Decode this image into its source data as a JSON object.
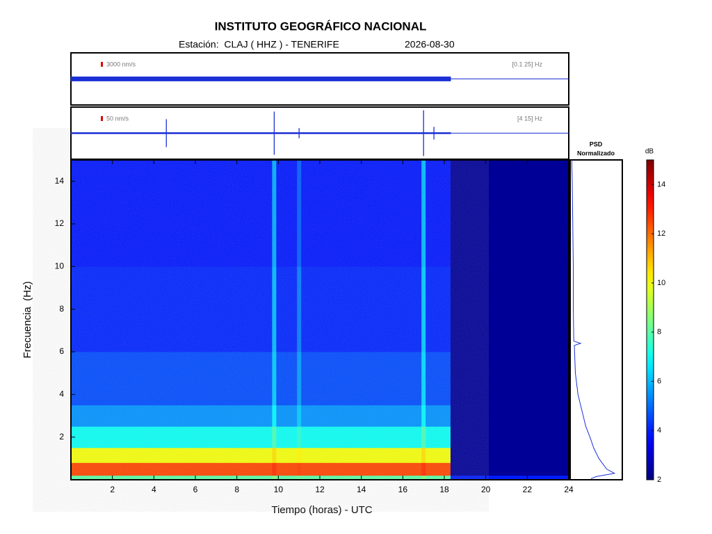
{
  "chart_data": {
    "type": "spectrogram",
    "title": "INSTITUTO GEOGRÁFICO NACIONAL",
    "subtitle": "Estación:  CLAJ ( HHZ ) - TENERIFE",
    "date": "2026-08-30",
    "x_label": "Tiempo (horas) - UTC",
    "y_label": "Frecuencia  (Hz)",
    "xlim": [
      0,
      24
    ],
    "xticks": [
      2,
      4,
      6,
      8,
      10,
      12,
      14,
      16,
      18,
      20,
      22,
      24
    ],
    "ylim": [
      0,
      15
    ],
    "yticks": [
      2,
      4,
      6,
      8,
      10,
      12,
      14
    ],
    "traces": [
      {
        "scale_label": "3000 nm/s",
        "band_label": "[0.1 25] Hz",
        "ylim": [
          -1,
          1
        ],
        "x": [
          0,
          18.3
        ],
        "values": [
          0.08,
          0.08
        ]
      },
      {
        "scale_label": "50 nm/s",
        "band_label": "[4 15] Hz",
        "ylim": [
          -1,
          1
        ],
        "x": [
          0,
          18.3
        ],
        "values": [
          0.02,
          0.02
        ],
        "events": {
          "x": [
            4.6,
            9.8,
            11.0,
            17.0,
            17.5
          ],
          "values": [
            0.55,
            0.85,
            0.2,
            0.9,
            0.25
          ]
        }
      }
    ],
    "spectrogram": {
      "time_edges": [
        0,
        9.7,
        9.9,
        10.9,
        11.1,
        16.9,
        17.1,
        18.3,
        24
      ],
      "freq_edges": [
        0,
        0.2,
        0.8,
        1.5,
        2.5,
        3.5,
        6,
        10,
        15
      ],
      "values": [
        [
          8,
          8.5,
          8,
          8.2,
          8,
          8.5,
          8,
          4
        ],
        [
          12.5,
          12.8,
          12.5,
          12.6,
          12.5,
          12.8,
          12.5,
          2.3
        ],
        [
          10,
          10.5,
          10,
          10.2,
          10,
          10.5,
          10,
          2.3
        ],
        [
          7,
          7.8,
          7,
          7.4,
          7,
          7.8,
          7,
          2.3
        ],
        [
          5.5,
          6.8,
          5.5,
          6.2,
          5.5,
          6.8,
          5.5,
          2.3
        ],
        [
          4.6,
          6.2,
          4.6,
          5.6,
          4.6,
          6.4,
          4.6,
          2.3
        ],
        [
          4.1,
          6,
          4.1,
          5.2,
          4.1,
          6.2,
          4.1,
          2.3
        ],
        [
          3.9,
          5.8,
          3.9,
          4.8,
          3.9,
          6,
          3.9,
          2.3
        ]
      ]
    },
    "psd": {
      "title": [
        "PSD",
        "Normalizado"
      ],
      "xlim": [
        0,
        1
      ],
      "freq": [
        15,
        14,
        12,
        10,
        8,
        6.5,
        6.4,
        6.3,
        5,
        4,
        3,
        2.5,
        2,
        1.5,
        1,
        0.5,
        0.3,
        0.15,
        0.05
      ],
      "values": [
        0.03,
        0.04,
        0.05,
        0.06,
        0.06,
        0.07,
        0.2,
        0.08,
        0.1,
        0.15,
        0.25,
        0.3,
        0.38,
        0.45,
        0.55,
        0.7,
        0.85,
        0.5,
        0.4
      ]
    },
    "colorbar": {
      "label": "dB",
      "clim": [
        2,
        15
      ],
      "ticks": [
        2,
        4,
        6,
        8,
        10,
        12,
        14
      ]
    }
  }
}
